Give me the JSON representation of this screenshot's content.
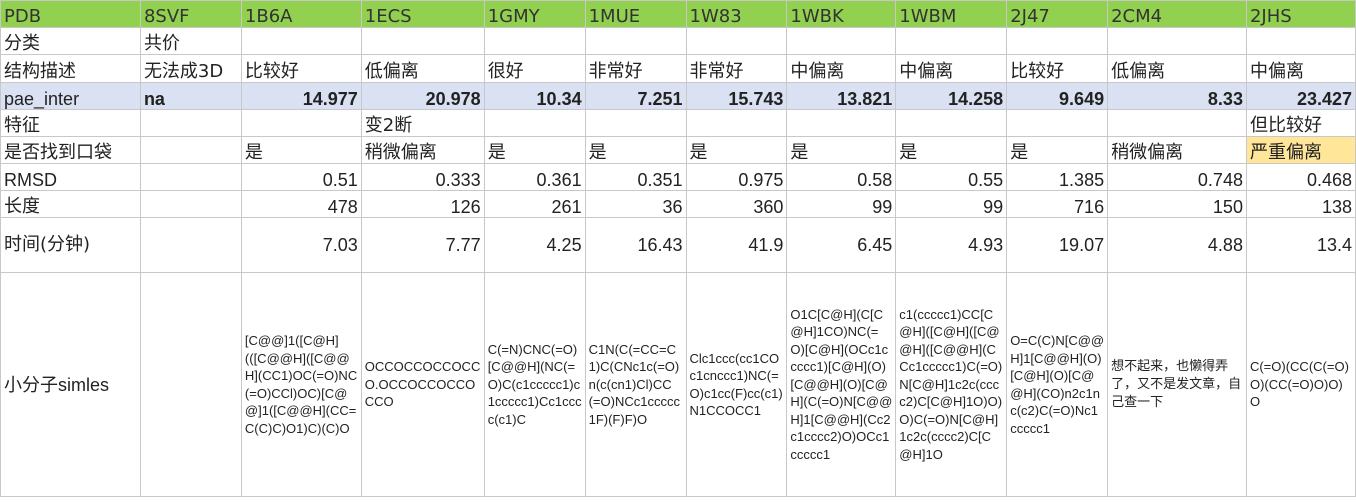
{
  "columns": [
    "PDB",
    "8SVF",
    "1B6A",
    "1ECS",
    "1GMY",
    "1MUE",
    "1W83",
    "1WBK",
    "1WBM",
    "2J47",
    "2CM4",
    "2JHS"
  ],
  "rows": {
    "category": {
      "label": "分类",
      "cells": [
        "共价",
        "",
        "",
        "",
        "",
        "",
        "",
        "",
        "",
        "",
        ""
      ]
    },
    "structure": {
      "label": "结构描述",
      "cells": [
        "无法成3D",
        "比较好",
        "低偏离",
        "很好",
        "非常好",
        "非常好",
        "中偏离",
        "中偏离",
        "比较好",
        "低偏离",
        "中偏离"
      ]
    },
    "pae_inter": {
      "label": "pae_inter",
      "cells": [
        "na",
        "14.977",
        "20.978",
        "10.34",
        "7.251",
        "15.743",
        "13.821",
        "14.258",
        "9.649",
        "8.33",
        "23.427"
      ]
    },
    "feature": {
      "label": "特征",
      "cells": [
        "",
        "",
        "变2断",
        "",
        "",
        "",
        "",
        "",
        "",
        "",
        "但比较好"
      ]
    },
    "pocket": {
      "label": "是否找到口袋",
      "cells": [
        "",
        "是",
        "稍微偏离",
        "是",
        "是",
        "是",
        "是",
        "是",
        "是",
        "稍微偏离",
        "严重偏离"
      ]
    },
    "rmsd": {
      "label": "RMSD",
      "cells": [
        "",
        "0.51",
        "0.333",
        "0.361",
        "0.351",
        "0.975",
        "0.58",
        "0.55",
        "1.385",
        "0.748",
        "0.468"
      ]
    },
    "length": {
      "label": "长度",
      "cells": [
        "",
        "478",
        "126",
        "261",
        "36",
        "360",
        "99",
        "99",
        "716",
        "150",
        "138"
      ]
    },
    "time": {
      "label": "时间(分钟)",
      "cells": [
        "",
        "7.03",
        "7.77",
        "4.25",
        "16.43",
        "41.9",
        "6.45",
        "4.93",
        "19.07",
        "4.88",
        "13.4"
      ]
    },
    "smiles": {
      "label": "小分子simles",
      "cells": [
        "",
        "[C@@]1([C@H](([C@@H]([C@@H](CC1)OC(=O)NC(=O)CCl)OC)[C@@]1([C@@H](CC=C(C)C)O1)C)(C)O",
        "OCCOCCOCCOCCO.OCCOCCOCCOCCO",
        "C(=N)CNC(=O)[C@@H](NC(=O)C(c1ccccc1)c1ccccc1)Cc1cccc(c1)C",
        "C1N(C(=CC=C1)C(CNc1c(=O)n(c(cn1)Cl)CC(=O)NCc1ccccc1F)(F)F)O",
        "Clc1ccc(cc1COc1cnccc1)NC(=O)c1cc(F)cc(c1)N1CCOCC1",
        "O1C[C@H](C[C@H]1CO)NC(=O)[C@H](OCc1ccccc1)[C@H](O)[C@@H](O)[C@H](C(=O)N[C@@H]1[C@@H](Cc2c1cccc2)O)OCc1ccccc1",
        "c1(ccccc1)CC[C@H]([C@H]([C@@H]([C@@H](CCc1ccccc1)C(=O)N[C@H]1c2c(cccc2)C[C@H]1O)O)O)C(=O)N[C@H]1c2c(cccc2)C[C@H]1O",
        "O=C(C)N[C@@H]1[C@@H](O)[C@H](O)[C@@H](CO)n2c1nc(c2)C(=O)Nc1ccccc1",
        "想不起来，也懒得弄了，又不是发文章，自己查一下",
        "C(=O)(CC(C(=O)O)(CC(=O)O)O)O"
      ]
    }
  },
  "colors": {
    "header_green": "#92d050",
    "pae_blue": "#d9e1f2",
    "highlight_yellow": "#ffe699",
    "grid": "#c8c8c8"
  }
}
